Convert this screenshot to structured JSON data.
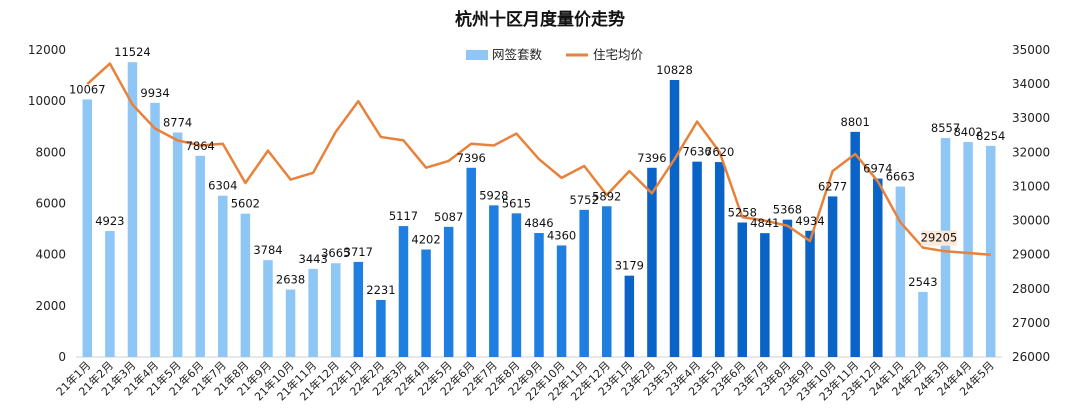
{
  "chart_data": {
    "type": "bar+line",
    "title": "杭州十区月度量价走势",
    "categories": [
      "21年1月",
      "21年2月",
      "21年3月",
      "21年4月",
      "21年5月",
      "21年6月",
      "21年7月",
      "21年8月",
      "21年9月",
      "21年10月",
      "21年11月",
      "21年12月",
      "22年1月",
      "22年2月",
      "22年3月",
      "22年4月",
      "22年5月",
      "22年6月",
      "22年7月",
      "22年8月",
      "22年9月",
      "22年10月",
      "22年11月",
      "22年12月",
      "23年1月",
      "23年2月",
      "23年3月",
      "23年4月",
      "23年5月",
      "23年6月",
      "23年7月",
      "23年8月",
      "23年9月",
      "23年10月",
      "23年11月",
      "23年12月",
      "24年1月",
      "24年2月",
      "24年3月",
      "24年4月",
      "24年5月"
    ],
    "series": [
      {
        "name": "网签套数",
        "kind": "bar",
        "axis": "left",
        "values": [
          10067,
          4923,
          11524,
          9934,
          8774,
          7864,
          6304,
          5602,
          3784,
          2638,
          3443,
          3665,
          3717,
          2231,
          5117,
          4202,
          5087,
          7396,
          5928,
          5615,
          4846,
          4360,
          5752,
          5892,
          3179,
          7396,
          10828,
          7636,
          7620,
          5258,
          4841,
          5368,
          4934,
          6277,
          8801,
          6974,
          6663,
          2543,
          8557,
          8402,
          8254
        ]
      },
      {
        "name": "住宅均价",
        "kind": "line",
        "axis": "right",
        "values": [
          34000,
          34600,
          33400,
          32700,
          32350,
          32200,
          32250,
          31100,
          32050,
          31200,
          31400,
          32600,
          33500,
          32450,
          32350,
          31550,
          31750,
          32250,
          32200,
          32550,
          31800,
          31250,
          31600,
          30750,
          31450,
          30800,
          31800,
          32900,
          32000,
          30100,
          30000,
          29850,
          29400,
          31450,
          31950,
          31150,
          29950,
          29205,
          29100,
          29050,
          29000
        ]
      }
    ],
    "point_labels": {
      "price_index": 37,
      "price_text": "29205"
    },
    "bar_colors": [
      "#8ec6f5",
      "#8ec6f5",
      "#8ec6f5",
      "#8ec6f5",
      "#8ec6f5",
      "#8ec6f5",
      "#8ec6f5",
      "#8ec6f5",
      "#8ec6f5",
      "#8ec6f5",
      "#8ec6f5",
      "#8ec6f5",
      "#1f7fe0",
      "#1f7fe0",
      "#1f7fe0",
      "#1f7fe0",
      "#1f7fe0",
      "#1f7fe0",
      "#1f7fe0",
      "#1f7fe0",
      "#1f7fe0",
      "#1f7fe0",
      "#1f7fe0",
      "#1f7fe0",
      "#0a63c7",
      "#0a63c7",
      "#0a63c7",
      "#0a63c7",
      "#0a63c7",
      "#0a63c7",
      "#0a63c7",
      "#0a63c7",
      "#0a63c7",
      "#0a63c7",
      "#0a63c7",
      "#0a63c7",
      "#8ec6f5",
      "#8ec6f5",
      "#8ec6f5",
      "#8ec6f5",
      "#8ec6f5"
    ],
    "line_color": "#e8823a",
    "legend_bar_color": "#8ec6f5",
    "y_left": {
      "min": 0,
      "max": 12000,
      "ticks": [
        0,
        2000,
        4000,
        6000,
        8000,
        10000,
        12000
      ]
    },
    "y_right": {
      "min": 26000,
      "max": 35000,
      "ticks": [
        26000,
        27000,
        28000,
        29000,
        30000,
        31000,
        32000,
        33000,
        34000,
        35000
      ]
    },
    "grid": false,
    "legend_position": "top-center"
  }
}
